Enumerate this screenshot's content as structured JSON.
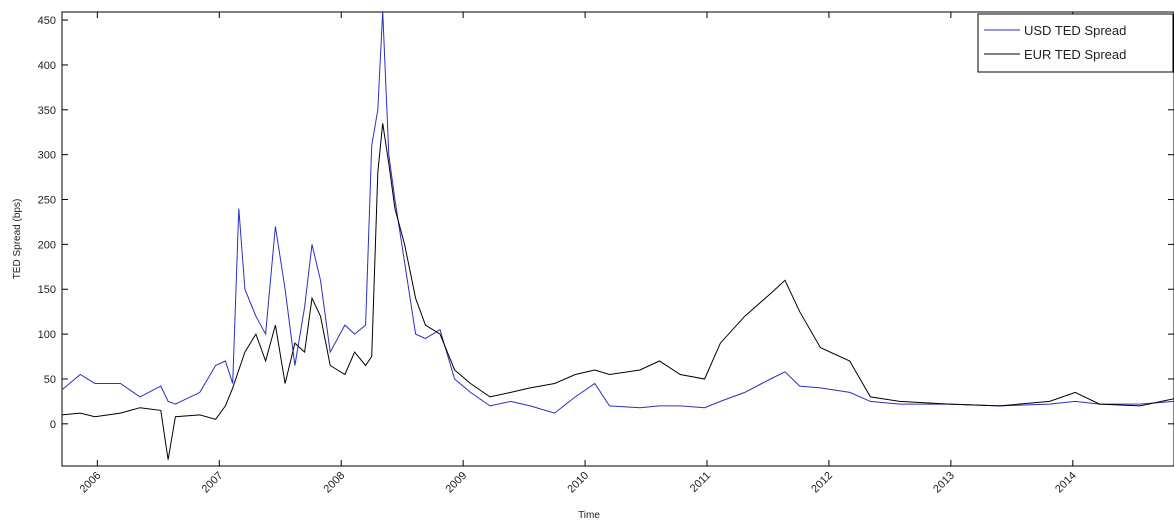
{
  "chart_data": {
    "type": "line",
    "x_label": "Time",
    "y_label": "TED Spread (bps)",
    "x": [
      2005.71,
      2005.86,
      2005.98,
      2006.19,
      2006.35,
      2006.52,
      2006.58,
      2006.64,
      2006.84,
      2006.97,
      2007.05,
      2007.11,
      2007.16,
      2007.21,
      2007.3,
      2007.38,
      2007.46,
      2007.54,
      2007.62,
      2007.7,
      2007.76,
      2007.83,
      2007.91,
      2008.03,
      2008.11,
      2008.2,
      2008.25,
      2008.3,
      2008.34,
      2008.39,
      2008.44,
      2008.52,
      2008.61,
      2008.69,
      2008.81,
      2008.93,
      2009.06,
      2009.22,
      2009.39,
      2009.55,
      2009.75,
      2009.92,
      2010.08,
      2010.2,
      2010.45,
      2010.61,
      2010.78,
      2010.98,
      2011.11,
      2011.31,
      2011.52,
      2011.64,
      2011.76,
      2011.93,
      2012.17,
      2012.34,
      2012.58,
      2012.99,
      2013.4,
      2013.81,
      2014.02,
      2014.22,
      2014.55,
      2014.83
    ],
    "series": [
      {
        "name": "USD TED Spread",
        "color": "#2a2fc0",
        "values": [
          38,
          55,
          45,
          45,
          30,
          42,
          25,
          22,
          35,
          65,
          70,
          45,
          240,
          150,
          120,
          100,
          220,
          150,
          65,
          130,
          200,
          160,
          80,
          110,
          100,
          110,
          310,
          350,
          460,
          300,
          250,
          180,
          100,
          95,
          105,
          50,
          35,
          20,
          25,
          20,
          12,
          30,
          45,
          20,
          18,
          20,
          20,
          18,
          25,
          35,
          50,
          58,
          42,
          40,
          35,
          25,
          22,
          22,
          20,
          22,
          25,
          22,
          22,
          25
        ]
      },
      {
        "name": "EUR TED Spread",
        "color": "#000000",
        "values": [
          10,
          12,
          8,
          12,
          18,
          15,
          -40,
          8,
          10,
          5,
          20,
          40,
          60,
          80,
          100,
          70,
          110,
          45,
          90,
          80,
          140,
          120,
          65,
          55,
          80,
          65,
          75,
          280,
          335,
          290,
          240,
          200,
          140,
          110,
          100,
          60,
          45,
          30,
          35,
          40,
          45,
          55,
          60,
          55,
          60,
          70,
          55,
          50,
          90,
          120,
          145,
          160,
          125,
          85,
          70,
          30,
          25,
          22,
          20,
          25,
          35,
          22,
          20,
          28
        ]
      }
    ],
    "xlim": [
      2005.71,
      2014.83
    ],
    "xticks": [
      2006,
      2007,
      2008,
      2009,
      2010,
      2011,
      2012,
      2013,
      2014
    ],
    "ylim": [
      -47,
      459
    ],
    "yticks": [
      0,
      50,
      100,
      150,
      200,
      250,
      300,
      350,
      400,
      450
    ],
    "legend": "upper right"
  }
}
